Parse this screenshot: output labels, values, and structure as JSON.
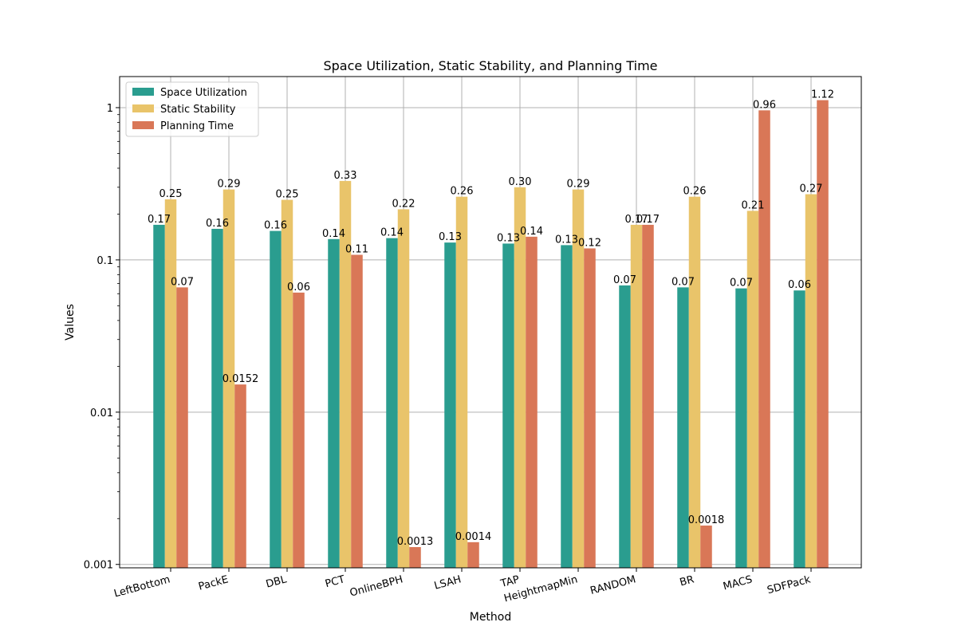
{
  "chart_data": {
    "type": "bar",
    "title": "Space Utilization, Static Stability, and Planning Time",
    "xlabel": "Method",
    "ylabel": "Values",
    "yscale": "log",
    "ylim": [
      0.00095,
      1.6
    ],
    "yticks": [
      0.001,
      0.01,
      0.1,
      1
    ],
    "ytick_labels": [
      "0.001",
      "0.01",
      "0.1",
      "1"
    ],
    "grid": true,
    "legend_position": "top-left",
    "categories": [
      "LeftBottom",
      "PackE",
      "DBL",
      "PCT",
      "OnlineBPH",
      "LSAH",
      "TAP",
      "HeightmapMin",
      "RANDOM",
      "BR",
      "MACS",
      "SDFPack"
    ],
    "series": [
      {
        "name": "Space Utilization",
        "color": "#2a9d8f",
        "values": [
          0.17,
          0.16,
          0.155,
          0.137,
          0.139,
          0.13,
          0.128,
          0.125,
          0.068,
          0.066,
          0.065,
          0.063
        ],
        "labels": [
          "0.17",
          "0.16",
          "0.16",
          "0.14",
          "0.14",
          "0.13",
          "0.13",
          "0.13",
          "0.07",
          "0.07",
          "0.07",
          "0.06"
        ]
      },
      {
        "name": "Static Stability",
        "color": "#e9c46a",
        "values": [
          0.25,
          0.29,
          0.248,
          0.33,
          0.215,
          0.26,
          0.3,
          0.29,
          0.17,
          0.26,
          0.21,
          0.27
        ],
        "labels": [
          "0.25",
          "0.29",
          "0.25",
          "0.33",
          "0.22",
          "0.26",
          "0.30",
          "0.29",
          "0.17",
          "0.26",
          "0.21",
          "0.27"
        ]
      },
      {
        "name": "Planning Time",
        "color": "#d97757",
        "values": [
          0.066,
          0.0152,
          0.061,
          0.108,
          0.0013,
          0.0014,
          0.142,
          0.119,
          0.17,
          0.0018,
          0.96,
          1.12
        ],
        "labels": [
          "0.07",
          "0.0152",
          "0.06",
          "0.11",
          "0.0013",
          "0.0014",
          "0.14",
          "0.12",
          "0.17",
          "0.0018",
          "0.96",
          "1.12"
        ]
      }
    ]
  }
}
